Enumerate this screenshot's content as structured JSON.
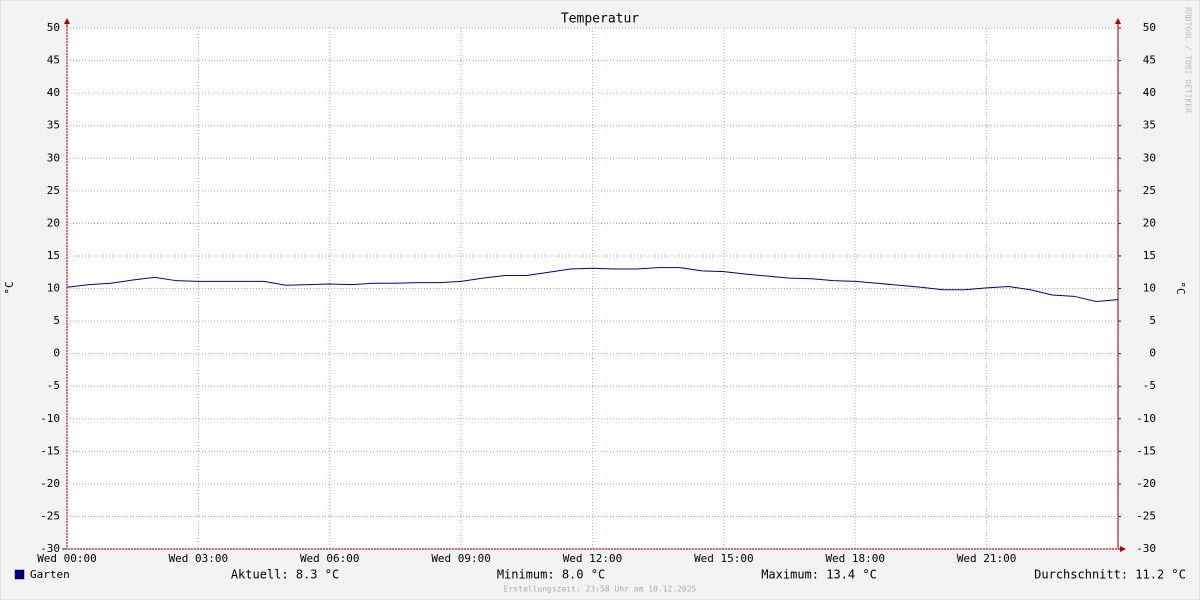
{
  "chart_data": {
    "type": "line",
    "title": "Temperatur",
    "y_label": "°C",
    "y2_label": "°C",
    "watermark": "RRDTOOL / TOBI OETIKER",
    "x": [
      0,
      0.5,
      1,
      1.5,
      2,
      2.5,
      3,
      3.5,
      4,
      4.5,
      5,
      5.5,
      6,
      6.5,
      7,
      7.5,
      8,
      8.5,
      9,
      9.5,
      10,
      10.5,
      11,
      11.5,
      12,
      12.5,
      13,
      13.5,
      14,
      14.5,
      15,
      15.5,
      16,
      16.5,
      17,
      17.5,
      18,
      18.5,
      19,
      19.5,
      20,
      20.5,
      21,
      21.5,
      22,
      22.5,
      23,
      23.5,
      24
    ],
    "series": [
      {
        "name": "Garten",
        "color": "#00008b",
        "values": [
          10.2,
          10.6,
          10.8,
          11.3,
          11.7,
          11.2,
          11.1,
          11.1,
          11.1,
          11.1,
          10.5,
          10.6,
          10.7,
          10.6,
          10.8,
          10.8,
          10.9,
          10.9,
          11.1,
          11.6,
          12.0,
          12.0,
          12.5,
          13.0,
          13.1,
          13.0,
          13.0,
          13.2,
          13.2,
          12.7,
          12.6,
          12.2,
          11.9,
          11.6,
          11.5,
          11.2,
          11.1,
          10.8,
          10.5,
          10.2,
          9.8,
          9.8,
          10.1,
          10.3,
          9.8,
          9.0,
          8.8,
          8.0,
          8.3
        ]
      }
    ],
    "xlim": [
      0,
      24
    ],
    "xticks": [
      {
        "value": 0,
        "label": "Wed 00:00"
      },
      {
        "value": 3,
        "label": "Wed 03:00"
      },
      {
        "value": 6,
        "label": "Wed 06:00"
      },
      {
        "value": 9,
        "label": "Wed 09:00"
      },
      {
        "value": 12,
        "label": "Wed 12:00"
      },
      {
        "value": 15,
        "label": "Wed 15:00"
      },
      {
        "value": 18,
        "label": "Wed 18:00"
      },
      {
        "value": 21,
        "label": "Wed 21:00"
      }
    ],
    "ylim": [
      -30,
      50
    ],
    "yticks": [
      -30,
      -25,
      -20,
      -15,
      -10,
      -5,
      0,
      5,
      10,
      15,
      20,
      25,
      30,
      35,
      40,
      45,
      50
    ],
    "y2lim": [
      -30,
      50
    ],
    "y2ticks": [
      -30,
      -25,
      -20,
      -15,
      -10,
      -5,
      0,
      5,
      10,
      15,
      20,
      25,
      30,
      35,
      40,
      45,
      50
    ],
    "grid": true,
    "stats": [
      "Aktuell: 8.3 °C",
      "Minimum: 8.0 °C",
      "Maximum: 13.4 °C",
      "Durchschnitt: 11.2 °C"
    ],
    "footer": "Erstellungszeit: 23:58 Uhr am 10.12.2025"
  }
}
